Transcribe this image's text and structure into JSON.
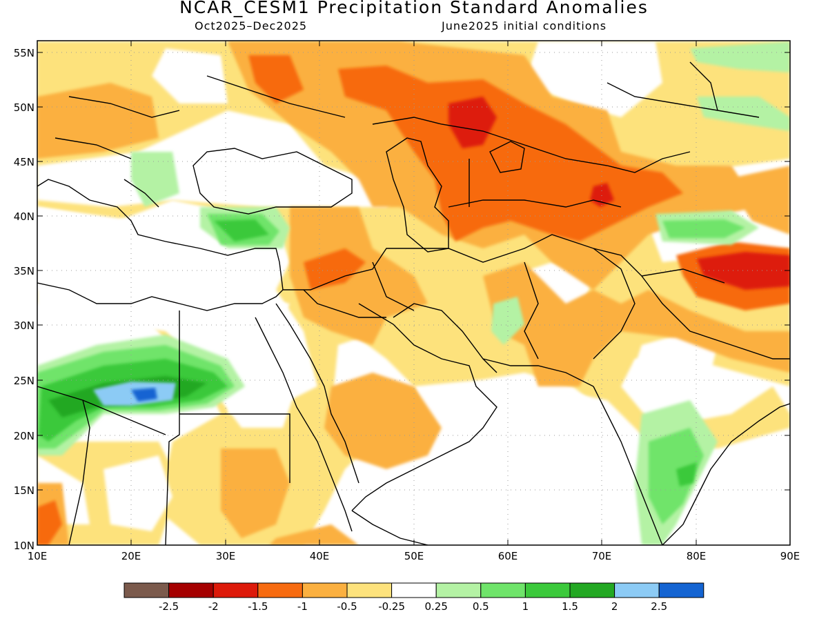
{
  "map": {
    "title": "NCAR_CESM1 Precipitation Standard Anomalies",
    "period": "Oct2025–Dec2025",
    "initial_conditions": "June2025 initial conditions",
    "lat_labels": [
      "55N",
      "50N",
      "45N",
      "40N",
      "35N",
      "30N",
      "25N",
      "20N",
      "15N",
      "10N"
    ],
    "lon_labels": [
      "10E",
      "20E",
      "30E",
      "40E",
      "50E",
      "60E",
      "70E",
      "80E",
      "90E"
    ],
    "extent": {
      "lon_min": 10,
      "lon_max": 90,
      "lat_min": 10,
      "lat_max": 56.5
    }
  },
  "legend": {
    "labels": [
      "-2.5",
      "-2",
      "-1.5",
      "-1",
      "-0.5",
      "-0.25",
      "0.25",
      "0.5",
      "1",
      "1.5",
      "2",
      "2.5"
    ],
    "colors": [
      "#7b5a4c",
      "#a50000",
      "#dd1a0a",
      "#f76b10",
      "#fbb040",
      "#fde27c",
      "#ffffff",
      "#b4f2a4",
      "#6fe46a",
      "#3bc93b",
      "#23a823",
      "#8ccbf5",
      "#1464d2"
    ]
  },
  "colors": {
    "coast": "#000000",
    "grid": "#9a9a9a"
  }
}
